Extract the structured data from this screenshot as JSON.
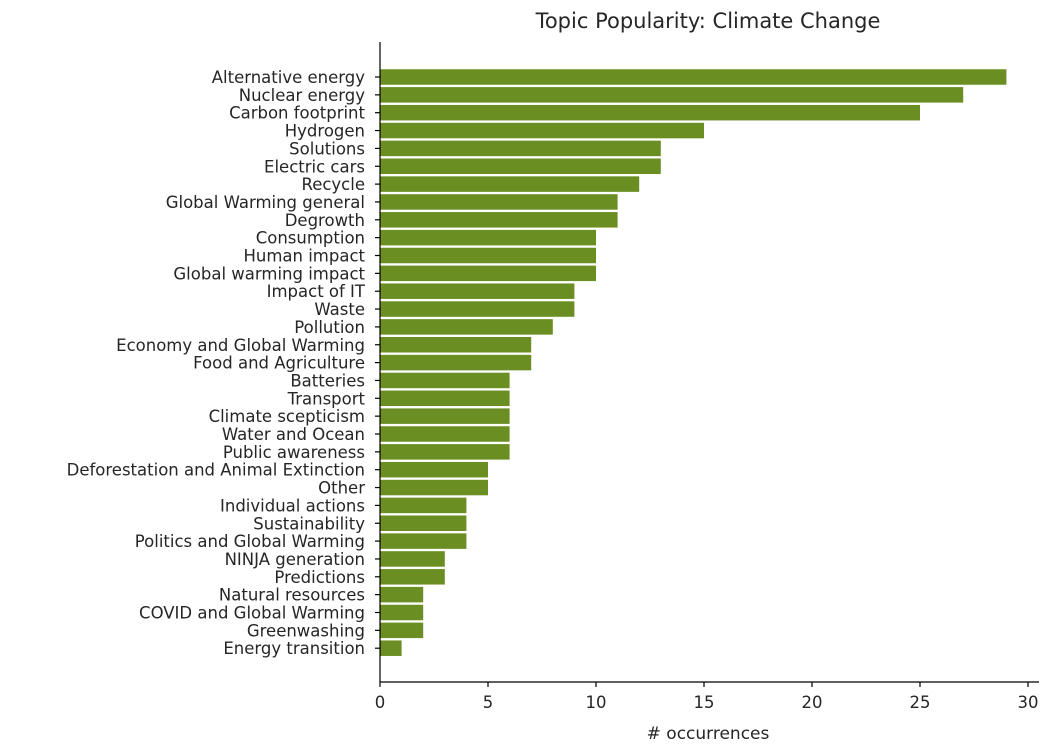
{
  "chart_data": {
    "type": "bar",
    "orientation": "horizontal",
    "title": "Topic Popularity: Climate Change",
    "xlabel": "# occurrences",
    "ylabel": "",
    "xlim": [
      0,
      30.5
    ],
    "xticks": [
      0,
      5,
      10,
      15,
      20,
      25,
      30
    ],
    "bar_color": "#6b8e23",
    "grid": false,
    "categories": [
      "Alternative energy",
      "Nuclear energy",
      "Carbon footprint",
      "Hydrogen",
      "Solutions",
      "Electric cars",
      "Recycle",
      "Global Warming general",
      "Degrowth",
      "Consumption",
      "Human impact",
      "Global warming impact",
      "Impact of IT",
      "Waste",
      "Pollution",
      "Economy and Global Warming",
      "Food and Agriculture",
      "Batteries",
      "Transport",
      "Climate scepticism",
      "Water and Ocean",
      "Public awareness",
      "Deforestation and Animal Extinction",
      "Other",
      "Individual actions",
      "Sustainability",
      "Politics and Global Warming",
      "NINJA generation",
      "Predictions",
      "Natural resources",
      "COVID and Global Warming",
      "Greenwashing",
      "Energy transition"
    ],
    "values": [
      29,
      27,
      25,
      15,
      13,
      13,
      12,
      11,
      11,
      10,
      10,
      10,
      9,
      9,
      8,
      7,
      7,
      6,
      6,
      6,
      6,
      6,
      5,
      5,
      4,
      4,
      4,
      3,
      3,
      2,
      2,
      2,
      1
    ]
  }
}
